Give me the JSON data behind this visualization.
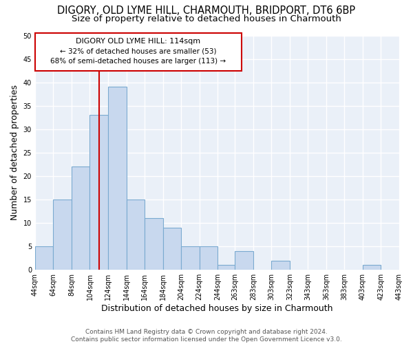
{
  "title": "DIGORY, OLD LYME HILL, CHARMOUTH, BRIDPORT, DT6 6BP",
  "subtitle": "Size of property relative to detached houses in Charmouth",
  "xlabel": "Distribution of detached houses by size in Charmouth",
  "ylabel": "Number of detached properties",
  "bin_edges": [
    44,
    64,
    84,
    104,
    124,
    144,
    164,
    184,
    204,
    224,
    244,
    263,
    283,
    303,
    323,
    343,
    363,
    383,
    403,
    423,
    443
  ],
  "counts": [
    5,
    15,
    22,
    33,
    39,
    15,
    11,
    9,
    5,
    5,
    1,
    4,
    0,
    2,
    0,
    0,
    0,
    0,
    1,
    0
  ],
  "tick_labels": [
    "44sqm",
    "64sqm",
    "84sqm",
    "104sqm",
    "124sqm",
    "144sqm",
    "164sqm",
    "184sqm",
    "204sqm",
    "224sqm",
    "244sqm",
    "263sqm",
    "283sqm",
    "303sqm",
    "323sqm",
    "343sqm",
    "363sqm",
    "383sqm",
    "403sqm",
    "423sqm",
    "443sqm"
  ],
  "bar_color": "#c8d8ee",
  "bar_edge_color": "#7aaad0",
  "vline_x": 114,
  "vline_color": "#cc0000",
  "ylim": [
    0,
    50
  ],
  "yticks": [
    0,
    5,
    10,
    15,
    20,
    25,
    30,
    35,
    40,
    45,
    50
  ],
  "annotation_title": "DIGORY OLD LYME HILL: 114sqm",
  "annotation_line1": "← 32% of detached houses are smaller (53)",
  "annotation_line2": "68% of semi-detached houses are larger (113) →",
  "footer1": "Contains HM Land Registry data © Crown copyright and database right 2024.",
  "footer2": "Contains public sector information licensed under the Open Government Licence v3.0.",
  "background_color": "#ffffff",
  "grid_color": "#c8d8ee",
  "title_fontsize": 10.5,
  "subtitle_fontsize": 9.5,
  "axis_label_fontsize": 9,
  "tick_fontsize": 7,
  "footer_fontsize": 6.5,
  "ann_box_color": "#cc0000",
  "ann_fontsize": 8
}
